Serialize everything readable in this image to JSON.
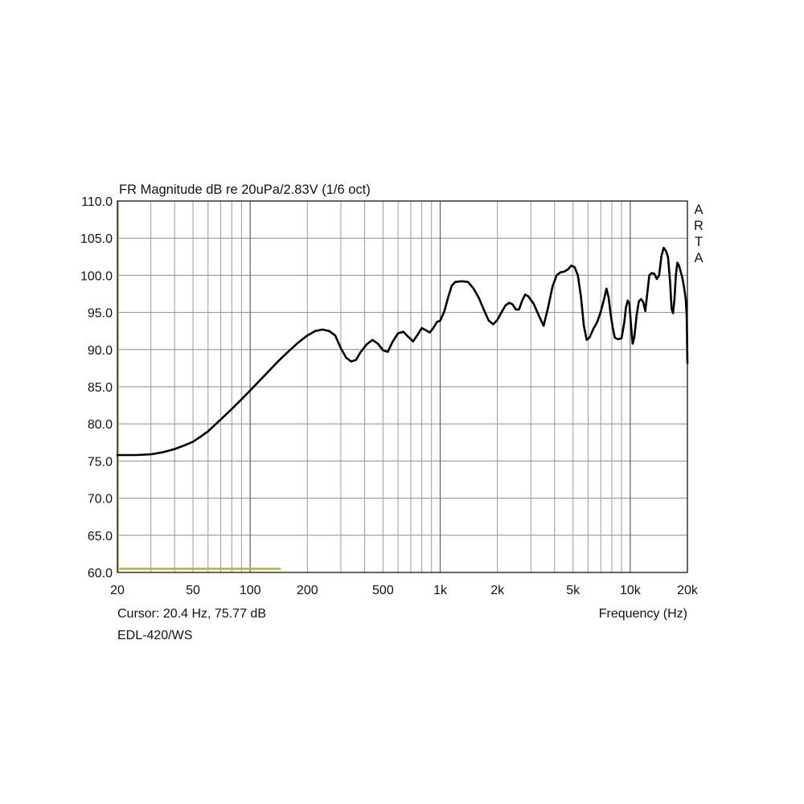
{
  "chart_data": {
    "type": "line",
    "title": "FR Magnitude dB re 20uPa/2.83V (1/6 oct)",
    "xlabel": "Frequency (Hz)",
    "ylabel": "",
    "xscale": "log",
    "xlim": [
      20,
      20000
    ],
    "ylim": [
      60,
      110
    ],
    "grid": true,
    "brand": "ARTA",
    "cursor_text": "Cursor: 20.4 Hz, 75.77 dB",
    "caption": "EDL-420/WS",
    "x_tick_labels": [
      {
        "value": 20,
        "label": "20"
      },
      {
        "value": 50,
        "label": "50"
      },
      {
        "value": 100,
        "label": "100"
      },
      {
        "value": 200,
        "label": "200"
      },
      {
        "value": 500,
        "label": "500"
      },
      {
        "value": 1000,
        "label": "1k"
      },
      {
        "value": 2000,
        "label": "2k"
      },
      {
        "value": 5000,
        "label": "5k"
      },
      {
        "value": 10000,
        "label": "10k"
      },
      {
        "value": 20000,
        "label": "20k"
      }
    ],
    "y_tick_labels": [
      {
        "value": 110,
        "label": "110.0"
      },
      {
        "value": 105,
        "label": "105.0"
      },
      {
        "value": 100,
        "label": "100.0"
      },
      {
        "value": 95,
        "label": "95.0"
      },
      {
        "value": 90,
        "label": "90.0"
      },
      {
        "value": 85,
        "label": "85.0"
      },
      {
        "value": 80,
        "label": "80.0"
      },
      {
        "value": 75,
        "label": "75.0"
      },
      {
        "value": 70,
        "label": "70.0"
      },
      {
        "value": 65,
        "label": "65.0"
      },
      {
        "value": 60,
        "label": "60.0"
      }
    ],
    "cursor_marker": {
      "x_range": [
        20.4,
        145
      ],
      "y": 60.5,
      "color": "#b5b532"
    },
    "series": [
      {
        "color": "#000000",
        "points": [
          [
            20,
            75.8
          ],
          [
            25,
            75.8
          ],
          [
            30,
            75.9
          ],
          [
            35,
            76.2
          ],
          [
            40,
            76.6
          ],
          [
            45,
            77.1
          ],
          [
            50,
            77.6
          ],
          [
            55,
            78.3
          ],
          [
            60,
            79.0
          ],
          [
            70,
            80.6
          ],
          [
            80,
            82.0
          ],
          [
            90,
            83.3
          ],
          [
            100,
            84.5
          ],
          [
            120,
            86.6
          ],
          [
            140,
            88.4
          ],
          [
            160,
            89.8
          ],
          [
            180,
            91.0
          ],
          [
            200,
            91.9
          ],
          [
            220,
            92.5
          ],
          [
            240,
            92.7
          ],
          [
            260,
            92.5
          ],
          [
            280,
            91.9
          ],
          [
            300,
            90.2
          ],
          [
            320,
            88.9
          ],
          [
            340,
            88.4
          ],
          [
            360,
            88.6
          ],
          [
            380,
            89.6
          ],
          [
            410,
            90.7
          ],
          [
            440,
            91.3
          ],
          [
            470,
            90.8
          ],
          [
            500,
            89.9
          ],
          [
            530,
            89.7
          ],
          [
            560,
            91.0
          ],
          [
            600,
            92.2
          ],
          [
            640,
            92.4
          ],
          [
            680,
            91.7
          ],
          [
            720,
            91.1
          ],
          [
            760,
            92.0
          ],
          [
            800,
            92.9
          ],
          [
            840,
            92.6
          ],
          [
            880,
            92.3
          ],
          [
            920,
            92.9
          ],
          [
            960,
            93.7
          ],
          [
            1000,
            93.9
          ],
          [
            1050,
            95.1
          ],
          [
            1100,
            97.0
          ],
          [
            1150,
            98.6
          ],
          [
            1200,
            99.1
          ],
          [
            1300,
            99.2
          ],
          [
            1400,
            99.1
          ],
          [
            1500,
            98.2
          ],
          [
            1600,
            96.9
          ],
          [
            1700,
            95.3
          ],
          [
            1800,
            93.9
          ],
          [
            1900,
            93.4
          ],
          [
            2000,
            94.0
          ],
          [
            2100,
            95.0
          ],
          [
            2200,
            95.9
          ],
          [
            2300,
            96.3
          ],
          [
            2400,
            96.1
          ],
          [
            2500,
            95.4
          ],
          [
            2600,
            95.4
          ],
          [
            2700,
            96.6
          ],
          [
            2800,
            97.4
          ],
          [
            2900,
            97.2
          ],
          [
            3100,
            96.2
          ],
          [
            3300,
            94.6
          ],
          [
            3500,
            93.2
          ],
          [
            3700,
            95.7
          ],
          [
            3900,
            98.5
          ],
          [
            4100,
            100.0
          ],
          [
            4300,
            100.4
          ],
          [
            4500,
            100.5
          ],
          [
            4700,
            100.8
          ],
          [
            4900,
            101.3
          ],
          [
            5100,
            101.1
          ],
          [
            5300,
            100.0
          ],
          [
            5500,
            97.2
          ],
          [
            5700,
            93.2
          ],
          [
            5900,
            91.3
          ],
          [
            6100,
            91.6
          ],
          [
            6400,
            92.8
          ],
          [
            6700,
            93.7
          ],
          [
            7000,
            95.1
          ],
          [
            7300,
            96.9
          ],
          [
            7500,
            98.2
          ],
          [
            7700,
            97.0
          ],
          [
            7900,
            94.6
          ],
          [
            8100,
            92.9
          ],
          [
            8300,
            91.6
          ],
          [
            8600,
            91.4
          ],
          [
            9000,
            91.5
          ],
          [
            9300,
            93.6
          ],
          [
            9500,
            95.7
          ],
          [
            9700,
            96.6
          ],
          [
            9900,
            96.2
          ],
          [
            10100,
            93.2
          ],
          [
            10300,
            90.8
          ],
          [
            10500,
            91.6
          ],
          [
            10800,
            94.6
          ],
          [
            11100,
            96.5
          ],
          [
            11400,
            96.8
          ],
          [
            11700,
            96.4
          ],
          [
            12000,
            95.2
          ],
          [
            12300,
            97.6
          ],
          [
            12600,
            100.0
          ],
          [
            13000,
            100.3
          ],
          [
            13400,
            100.2
          ],
          [
            13800,
            99.5
          ],
          [
            14200,
            100.0
          ],
          [
            14600,
            102.6
          ],
          [
            15000,
            103.7
          ],
          [
            15400,
            103.3
          ],
          [
            15800,
            102.5
          ],
          [
            16200,
            99.2
          ],
          [
            16500,
            95.5
          ],
          [
            16800,
            94.9
          ],
          [
            17100,
            96.8
          ],
          [
            17400,
            100.1
          ],
          [
            17700,
            101.7
          ],
          [
            18000,
            101.4
          ],
          [
            18400,
            100.6
          ],
          [
            18800,
            99.7
          ],
          [
            19200,
            98.4
          ],
          [
            19600,
            96.8
          ],
          [
            19850,
            94.3
          ],
          [
            20000,
            88.2
          ]
        ]
      }
    ]
  }
}
